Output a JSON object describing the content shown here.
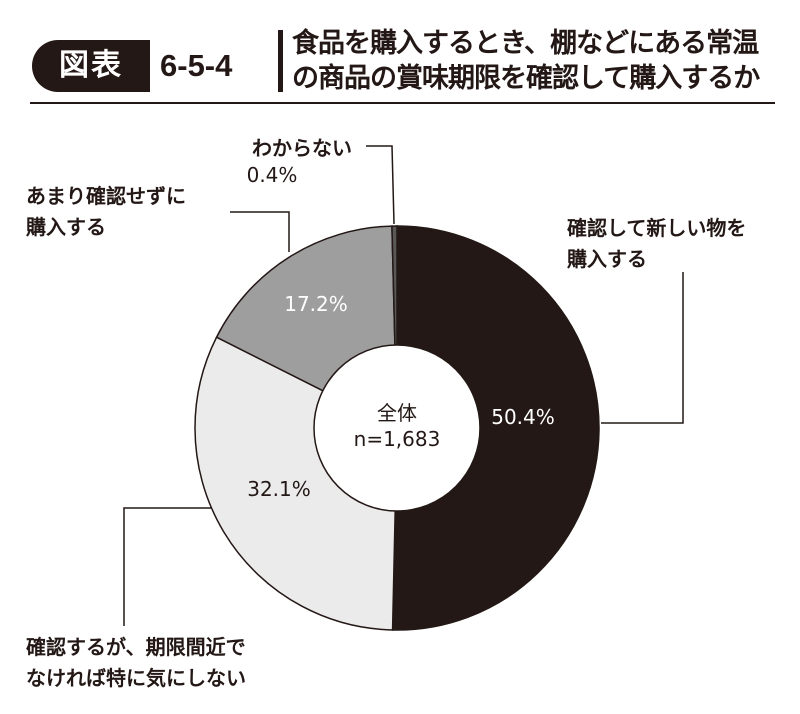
{
  "header": {
    "badge": "図表",
    "number": "6-5-4",
    "title_lines": [
      "食品を購入するとき、棚などにある常温",
      "の商品の賞味期限を確認して購入するか"
    ]
  },
  "chart_data": {
    "type": "pie",
    "title": "食品を購入するとき、棚などにある常温の商品の賞味期限を確認して購入するか",
    "center_label": [
      "全体",
      "n=1,683"
    ],
    "slices": [
      {
        "label": [
          "確認して新しい物を",
          "購入する"
        ],
        "value": 50.4,
        "value_label": "50.4%",
        "color": "#231815"
      },
      {
        "label": [
          "確認するが、期限間近で",
          "なければ特に気にしない"
        ],
        "value": 32.1,
        "value_label": "32.1%",
        "color": "#ebebeb"
      },
      {
        "label": [
          "あまり確認せずに",
          "購入する"
        ],
        "value": 17.2,
        "value_label": "17.2%",
        "color": "#9e9e9f"
      },
      {
        "label": [
          "わからない"
        ],
        "value": 0.4,
        "value_label": "0.4%",
        "color": "#595757"
      }
    ]
  }
}
